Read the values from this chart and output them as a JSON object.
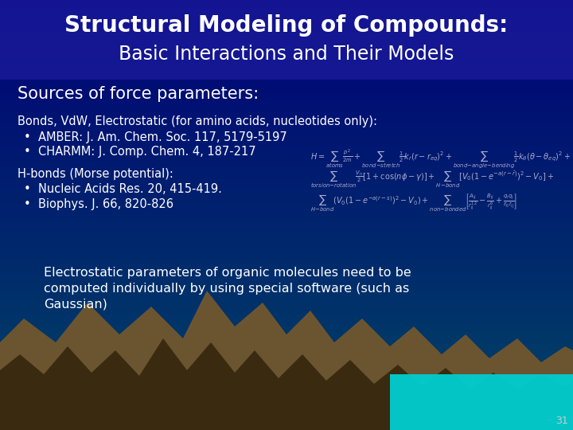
{
  "title_line1": "Structural Modeling of Compounds:",
  "title_line2": "Basic Interactions and Their Models",
  "title_color": "#FFFFFF",
  "title_fontsize": 20,
  "title_fontsize2": 17,
  "slide_number": "31",
  "sources_header": "Sources of force parameters:",
  "sources_header_fontsize": 15,
  "bonds_text": "Bonds, VdW, Electrostatic (for amino acids, nucleotides only):",
  "bonds_bullets": [
    "AMBER: J. Am. Chem. Soc. 117, 5179-5197",
    "CHARMM: J. Comp. Chem. 4, 187-217"
  ],
  "hbonds_text": "H-bonds (Morse potential):",
  "hbonds_bullets": [
    "Nucleic Acids Res. 20, 415-419.",
    "Biophys. J. 66, 820-826"
  ],
  "electrostatic_lines": [
    "Electrostatic parameters of organic molecules need to be",
    "computed individually by using special software (such as",
    "Gaussian)"
  ],
  "text_color": "#FFFFFF",
  "body_fontsize": 10.5,
  "electrostatic_fontsize": 11.5,
  "formula_color": "#AAAACC",
  "mountain_color1": "#6B5530",
  "mountain_color2": "#3A2A10",
  "water_color": "#00CED1"
}
